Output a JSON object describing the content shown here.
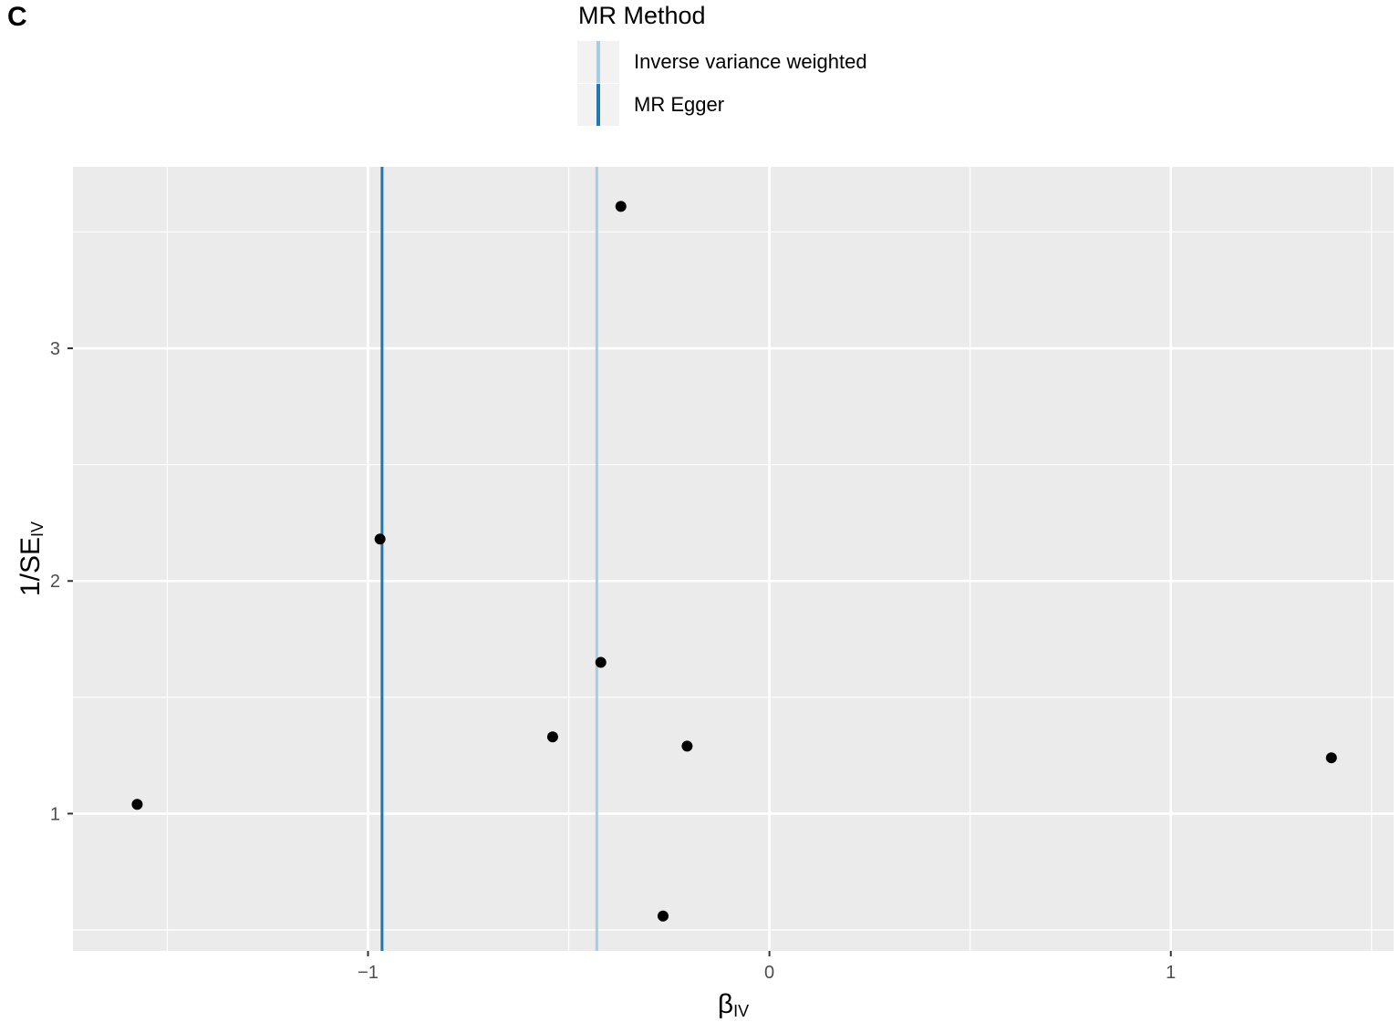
{
  "panel_label": "C",
  "legend": {
    "title": "MR Method",
    "items": [
      {
        "label": "Inverse variance weighted",
        "color": "#a6cee3"
      },
      {
        "label": "MR Egger",
        "color": "#1f78b4"
      }
    ]
  },
  "chart_data": {
    "type": "scatter",
    "xlabel": {
      "main": "β",
      "sub": "IV"
    },
    "ylabel": {
      "main": "1/SE",
      "sub": "IV"
    },
    "xlim": [
      -1.735,
      1.555
    ],
    "ylim": [
      0.41,
      3.78
    ],
    "x_ticks": [
      -1,
      0,
      1
    ],
    "x_tick_labels": [
      "−1",
      "0",
      "1"
    ],
    "y_ticks": [
      1,
      2,
      3
    ],
    "y_tick_labels": [
      "1",
      "2",
      "3"
    ],
    "points": [
      {
        "x": -1.575,
        "y": 1.04
      },
      {
        "x": -0.97,
        "y": 2.18
      },
      {
        "x": -0.54,
        "y": 1.33
      },
      {
        "x": -0.42,
        "y": 1.65
      },
      {
        "x": -0.37,
        "y": 3.61
      },
      {
        "x": -0.265,
        "y": 0.56
      },
      {
        "x": -0.205,
        "y": 1.29
      },
      {
        "x": 1.4,
        "y": 1.24
      }
    ],
    "vlines": [
      {
        "method": "MR Egger",
        "x": -0.965,
        "color": "#1f78b4"
      },
      {
        "method": "Inverse variance weighted",
        "x": -0.43,
        "color": "#a6cee3"
      }
    ],
    "panel_background": "#ebebeb",
    "grid": true,
    "legend_position": "top"
  }
}
